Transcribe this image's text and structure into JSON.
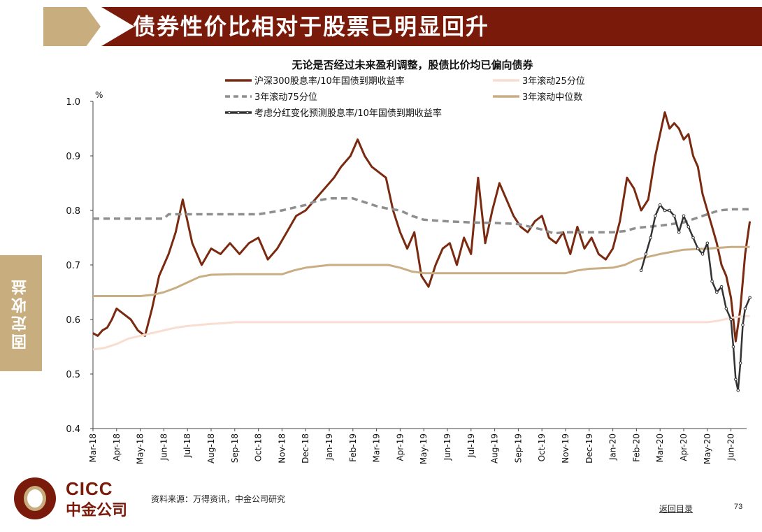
{
  "header": {
    "title": "债券性价比相对于股票已明显回升"
  },
  "sidebar": {
    "tab_label": "固定收益"
  },
  "footer": {
    "source": "资料来源：万得资讯，中金公司研究",
    "back_link": "返回目录",
    "page_number": "73"
  },
  "logo": {
    "en": "CICC",
    "cn": "中金公司"
  },
  "colors": {
    "brand_red": "#7a1a0a",
    "brand_tan": "#c8ad7f",
    "series_main": "#7a2a10",
    "series_p25": "#f8ddd0",
    "series_p75": "#8f8f8f",
    "series_median": "#c9ae84",
    "series_forecast": "#333333"
  },
  "chart_data": {
    "type": "line",
    "title": "无论是否经过未来盈利调整，股债比价均已偏向债券",
    "ylabel": "%",
    "ylim": [
      0.4,
      1.0
    ],
    "yticks": [
      "1.0",
      "0.9",
      "0.8",
      "0.7",
      "0.6",
      "0.5",
      "0.4"
    ],
    "x_tick_labels": [
      "Mar-18",
      "Apr-18",
      "May-18",
      "Jun-18",
      "Jul-18",
      "Aug-18",
      "Sep-18",
      "Oct-18",
      "Nov-18",
      "Dec-18",
      "Jan-19",
      "Feb-19",
      "Mar-19",
      "Apr-19",
      "May-19",
      "Jun-19",
      "Jul-19",
      "Aug-19",
      "Sep-19",
      "Oct-19",
      "Nov-19",
      "Dec-19",
      "Jan-20",
      "Feb-20",
      "Mar-20",
      "Apr-20",
      "May-20",
      "Jun-20"
    ],
    "grid": false,
    "legend_placement": "top",
    "series": [
      {
        "name": "沪深300股息率/10年国债到期收益率",
        "style": "solid",
        "x": [
          0,
          0.2,
          0.4,
          0.6,
          0.8,
          1,
          1.3,
          1.6,
          1.9,
          2.2,
          2.5,
          2.8,
          3,
          3.2,
          3.5,
          3.8,
          4.2,
          4.6,
          5,
          5.4,
          5.8,
          6.2,
          6.6,
          7,
          7.4,
          7.8,
          8.2,
          8.6,
          9,
          9.4,
          9.8,
          10.2,
          10.5,
          10.9,
          11.2,
          11.5,
          11.8,
          12.1,
          12.4,
          12.7,
          13,
          13.3,
          13.6,
          13.9,
          14.2,
          14.5,
          14.8,
          15.1,
          15.4,
          15.7,
          16,
          16.3,
          16.6,
          16.9,
          17.2,
          17.5,
          17.8,
          18.1,
          18.4,
          18.7,
          19,
          19.3,
          19.6,
          19.9,
          20.2,
          20.5,
          20.8,
          21.1,
          21.4,
          21.7,
          22,
          22.3,
          22.6,
          22.9,
          23.2,
          23.5,
          23.8,
          24,
          24.2,
          24.4,
          24.6,
          24.8,
          25,
          25.2,
          25.4,
          25.6,
          25.8,
          26,
          26.2,
          26.4,
          26.6,
          26.8,
          27,
          27.2,
          27.4,
          27.6,
          27.8
        ],
        "y": [
          0.575,
          0.57,
          0.58,
          0.585,
          0.6,
          0.62,
          0.61,
          0.6,
          0.58,
          0.57,
          0.62,
          0.68,
          0.7,
          0.72,
          0.76,
          0.82,
          0.74,
          0.7,
          0.73,
          0.72,
          0.74,
          0.72,
          0.74,
          0.75,
          0.71,
          0.73,
          0.76,
          0.79,
          0.8,
          0.82,
          0.84,
          0.86,
          0.88,
          0.9,
          0.93,
          0.9,
          0.88,
          0.87,
          0.86,
          0.8,
          0.76,
          0.73,
          0.76,
          0.68,
          0.66,
          0.7,
          0.73,
          0.74,
          0.7,
          0.75,
          0.72,
          0.86,
          0.74,
          0.8,
          0.85,
          0.82,
          0.79,
          0.77,
          0.76,
          0.78,
          0.79,
          0.75,
          0.74,
          0.76,
          0.72,
          0.77,
          0.73,
          0.75,
          0.72,
          0.71,
          0.73,
          0.78,
          0.86,
          0.84,
          0.8,
          0.82,
          0.9,
          0.94,
          0.98,
          0.95,
          0.96,
          0.95,
          0.93,
          0.94,
          0.9,
          0.88,
          0.83,
          0.8,
          0.77,
          0.74,
          0.7,
          0.68,
          0.64,
          0.56,
          0.62,
          0.72,
          0.78
        ]
      },
      {
        "name": "3年滚动25分位",
        "style": "solid",
        "x": [
          0,
          0.5,
          1,
          1.5,
          2,
          2.5,
          3,
          3.5,
          4,
          4.5,
          5,
          5.5,
          6,
          7,
          8,
          10,
          12,
          14,
          16,
          18,
          20,
          22,
          24,
          25,
          26,
          26.5,
          27,
          27.5,
          27.8
        ],
        "y": [
          0.545,
          0.548,
          0.555,
          0.565,
          0.57,
          0.575,
          0.58,
          0.585,
          0.588,
          0.59,
          0.592,
          0.593,
          0.595,
          0.595,
          0.595,
          0.595,
          0.595,
          0.595,
          0.595,
          0.595,
          0.595,
          0.595,
          0.595,
          0.595,
          0.595,
          0.598,
          0.603,
          0.606,
          0.606
        ]
      },
      {
        "name": "3年滚动75分位",
        "style": "dash",
        "x": [
          0,
          1,
          2,
          3,
          3.2,
          4,
          5,
          6,
          7,
          8,
          9,
          9.5,
          10,
          10.5,
          11,
          11.5,
          12,
          12.5,
          13,
          13.5,
          14,
          15,
          16,
          17,
          18,
          19,
          19.5,
          20,
          21,
          22,
          22.5,
          23,
          24,
          25,
          26,
          26.5,
          27,
          27.8
        ],
        "y": [
          0.785,
          0.785,
          0.785,
          0.785,
          0.793,
          0.793,
          0.793,
          0.793,
          0.793,
          0.8,
          0.81,
          0.818,
          0.822,
          0.822,
          0.822,
          0.815,
          0.808,
          0.803,
          0.8,
          0.79,
          0.783,
          0.78,
          0.778,
          0.777,
          0.775,
          0.765,
          0.758,
          0.76,
          0.76,
          0.76,
          0.762,
          0.768,
          0.772,
          0.778,
          0.793,
          0.8,
          0.802,
          0.802
        ]
      },
      {
        "name": "3年滚动中位数",
        "style": "solid",
        "x": [
          0,
          1,
          2,
          2.5,
          3,
          3.5,
          4,
          4.5,
          5,
          6,
          7,
          8,
          8.5,
          9,
          10,
          11,
          12,
          12.5,
          13,
          13.5,
          14,
          15,
          16,
          17,
          18,
          19,
          20,
          20.5,
          21,
          22,
          22.5,
          23,
          24,
          25,
          26,
          27,
          27.8
        ],
        "y": [
          0.643,
          0.643,
          0.643,
          0.645,
          0.65,
          0.658,
          0.668,
          0.678,
          0.682,
          0.683,
          0.683,
          0.683,
          0.69,
          0.695,
          0.7,
          0.7,
          0.7,
          0.7,
          0.695,
          0.688,
          0.685,
          0.685,
          0.685,
          0.685,
          0.685,
          0.685,
          0.685,
          0.69,
          0.693,
          0.695,
          0.7,
          0.71,
          0.72,
          0.728,
          0.73,
          0.733,
          0.733
        ]
      },
      {
        "name": "考虑分红变化预测股息率/10年国债到期收益率",
        "style": "marker",
        "x": [
          23.2,
          23.4,
          23.6,
          23.8,
          24,
          24.2,
          24.4,
          24.6,
          24.8,
          25,
          25.2,
          25.4,
          25.6,
          25.8,
          26,
          26.2,
          26.4,
          26.6,
          26.8,
          27,
          27.1,
          27.2,
          27.3,
          27.4,
          27.5,
          27.6,
          27.8
        ],
        "y": [
          0.69,
          0.72,
          0.75,
          0.79,
          0.81,
          0.8,
          0.8,
          0.79,
          0.76,
          0.79,
          0.77,
          0.75,
          0.73,
          0.72,
          0.74,
          0.67,
          0.65,
          0.66,
          0.62,
          0.6,
          0.55,
          0.49,
          0.47,
          0.52,
          0.59,
          0.62,
          0.64
        ]
      }
    ]
  }
}
